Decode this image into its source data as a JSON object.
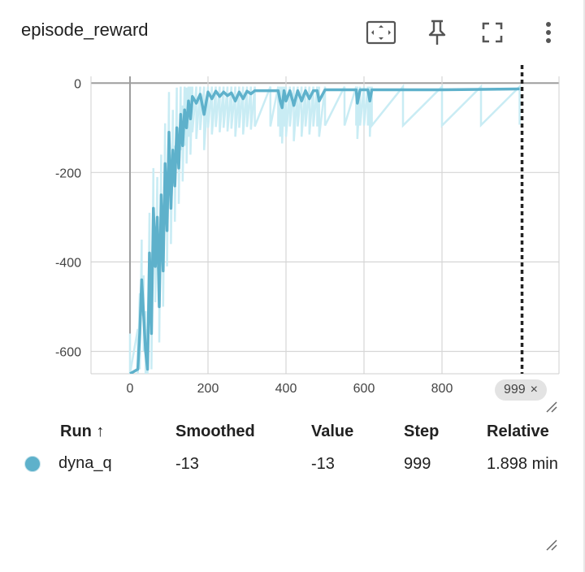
{
  "card": {
    "title": "episode_reward",
    "tools": [
      "fit-domain-icon",
      "pin-icon",
      "fullscreen-icon",
      "more-vert-icon"
    ]
  },
  "chart_data": {
    "type": "line",
    "title": "episode_reward",
    "xlabel": "",
    "ylabel": "",
    "xlim": [
      -100,
      1100
    ],
    "ylim": [
      -650,
      15
    ],
    "x_ticks": [
      "0",
      "200",
      "400",
      "600",
      "800"
    ],
    "y_ticks": [
      "0",
      "-200",
      "-400",
      "-600"
    ],
    "grid": true,
    "cursor_step": 999,
    "series": [
      {
        "name": "dyna_q",
        "color": "#5eb1cb",
        "raw_color": "#c9ecf4",
        "x": [
          0,
          20,
          25,
          30,
          35,
          40,
          45,
          50,
          55,
          60,
          65,
          70,
          75,
          80,
          85,
          90,
          95,
          100,
          105,
          110,
          115,
          120,
          125,
          130,
          135,
          140,
          145,
          150,
          155,
          160,
          170,
          180,
          190,
          200,
          210,
          220,
          230,
          240,
          250,
          260,
          270,
          280,
          290,
          300,
          310,
          320,
          360,
          380,
          385,
          390,
          395,
          400,
          410,
          420,
          430,
          440,
          450,
          460,
          470,
          480,
          485,
          500,
          550,
          580,
          583,
          590,
          600,
          610,
          615,
          620,
          700,
          800,
          900,
          999
        ],
        "smoothed": [
          -650,
          -640,
          -560,
          -440,
          -520,
          -600,
          -640,
          -380,
          -560,
          -280,
          -410,
          -300,
          -500,
          -250,
          -420,
          -180,
          -330,
          -110,
          -280,
          -150,
          -230,
          -100,
          -190,
          -70,
          -140,
          -60,
          -100,
          -40,
          -80,
          -30,
          -45,
          -25,
          -70,
          -20,
          -35,
          -18,
          -30,
          -20,
          -28,
          -22,
          -40,
          -20,
          -35,
          -18,
          -24,
          -17,
          -17,
          -17,
          -40,
          -55,
          -17,
          -40,
          -17,
          -50,
          -17,
          -40,
          -17,
          -35,
          -17,
          -17,
          -40,
          -15,
          -15,
          -15,
          -45,
          -15,
          -15,
          -15,
          -40,
          -15,
          -15,
          -15,
          -14,
          -13
        ],
        "last": {
          "smoothed": "-13",
          "value": "-13",
          "step": "999",
          "relative": "1.898 min"
        }
      }
    ]
  },
  "chip": {
    "label": "999",
    "close": "×"
  },
  "table": {
    "headers": {
      "run": "Run ↑",
      "smoothed": "Smoothed",
      "value": "Value",
      "step": "Step",
      "relative": "Relative"
    },
    "rows": [
      {
        "run": "dyna_q",
        "smoothed": "-13",
        "value": "-13",
        "step": "999",
        "relative": "1.898 min",
        "color": "#5eb1cb"
      }
    ]
  }
}
